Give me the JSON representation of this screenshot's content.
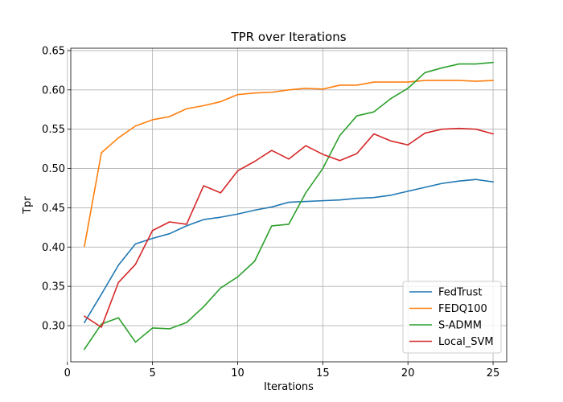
{
  "chart_data": {
    "type": "line",
    "title": "TPR over Iterations",
    "xlabel": "Iterations",
    "ylabel": "Tpr",
    "xlim": [
      0.2,
      25.8
    ],
    "ylim": [
      0.254,
      0.653
    ],
    "xticks": [
      0,
      5,
      10,
      15,
      20,
      25
    ],
    "yticks": [
      0.3,
      0.35,
      0.4,
      0.45,
      0.5,
      0.55,
      0.6,
      0.65
    ],
    "ytick_labels": [
      "0.30",
      "0.35",
      "0.40",
      "0.45",
      "0.50",
      "0.55",
      "0.60",
      "0.65"
    ],
    "grid": true,
    "legend_position": "lower-right",
    "x": [
      1,
      2,
      3,
      4,
      5,
      6,
      7,
      8,
      9,
      10,
      11,
      12,
      13,
      14,
      15,
      16,
      17,
      18,
      19,
      20,
      21,
      22,
      23,
      24,
      25
    ],
    "series": [
      {
        "name": "FedTrust",
        "color": "#1f77b4",
        "values": [
          0.304,
          0.34,
          0.377,
          0.404,
          0.411,
          0.417,
          0.427,
          0.435,
          0.438,
          0.442,
          0.447,
          0.451,
          0.457,
          0.458,
          0.459,
          0.46,
          0.462,
          0.463,
          0.466,
          0.471,
          0.476,
          0.481,
          0.484,
          0.486,
          0.483
        ]
      },
      {
        "name": "FEDQ100",
        "color": "#ff7f0e",
        "values": [
          0.401,
          0.52,
          0.539,
          0.554,
          0.562,
          0.566,
          0.576,
          0.58,
          0.585,
          0.594,
          0.596,
          0.597,
          0.6,
          0.602,
          0.601,
          0.606,
          0.606,
          0.61,
          0.61,
          0.61,
          0.612,
          0.612,
          0.612,
          0.611,
          0.612
        ]
      },
      {
        "name": "S-ADMM",
        "color": "#2ca02c",
        "values": [
          0.27,
          0.302,
          0.31,
          0.279,
          0.297,
          0.296,
          0.304,
          0.324,
          0.348,
          0.362,
          0.382,
          0.427,
          0.429,
          0.469,
          0.5,
          0.542,
          0.567,
          0.572,
          0.589,
          0.602,
          0.622,
          0.628,
          0.633,
          0.633,
          0.635
        ]
      },
      {
        "name": "Local_SVM",
        "color": "#d62728",
        "values": [
          0.312,
          0.298,
          0.355,
          0.378,
          0.421,
          0.432,
          0.429,
          0.478,
          0.469,
          0.497,
          0.509,
          0.523,
          0.512,
          0.529,
          0.518,
          0.51,
          0.519,
          0.544,
          0.535,
          0.53,
          0.545,
          0.55,
          0.551,
          0.55,
          0.544
        ]
      }
    ]
  }
}
